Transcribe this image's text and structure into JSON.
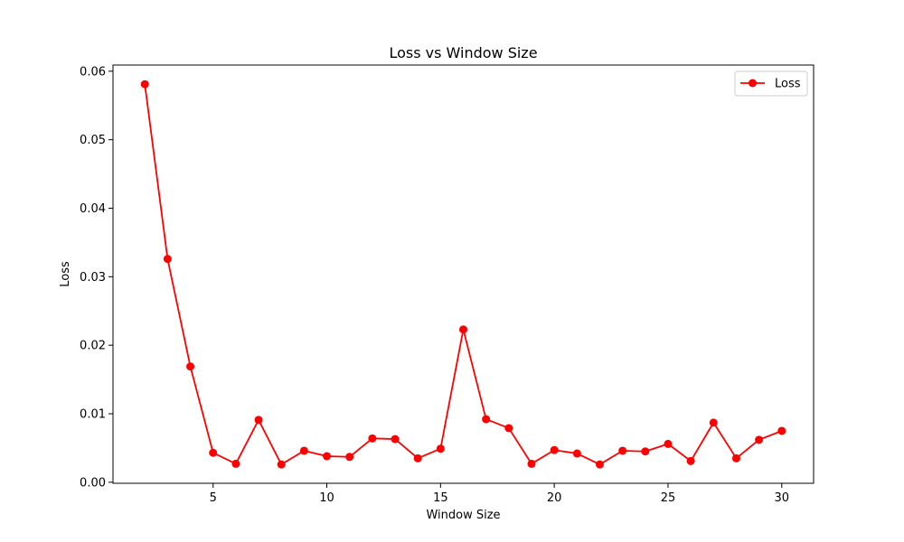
{
  "chart_data": {
    "type": "line",
    "title": "Loss vs Window Size",
    "xlabel": "Window Size",
    "ylabel": "Loss",
    "xlim": [
      0.6,
      31.4
    ],
    "ylim": [
      -0.00015,
      0.0609
    ],
    "xticks": [
      5,
      10,
      15,
      20,
      25,
      30
    ],
    "yticks": [
      0.0,
      0.01,
      0.02,
      0.03,
      0.04,
      0.05,
      0.06
    ],
    "ytick_labels": [
      "0.00",
      "0.01",
      "0.02",
      "0.03",
      "0.04",
      "0.05",
      "0.06"
    ],
    "legend": "upper-right",
    "grid": false,
    "series": [
      {
        "name": "Loss",
        "color": "#ff0000",
        "marker": "circle",
        "x": [
          2,
          3,
          4,
          5,
          6,
          7,
          8,
          9,
          10,
          11,
          12,
          13,
          14,
          15,
          16,
          17,
          18,
          19,
          20,
          21,
          22,
          23,
          24,
          25,
          26,
          27,
          28,
          29,
          30
        ],
        "y": [
          0.0581,
          0.0326,
          0.0169,
          0.0043,
          0.0027,
          0.0091,
          0.0026,
          0.0046,
          0.0038,
          0.0037,
          0.0064,
          0.0063,
          0.0035,
          0.0049,
          0.0223,
          0.0092,
          0.0079,
          0.0027,
          0.0047,
          0.0042,
          0.0026,
          0.0046,
          0.0045,
          0.0056,
          0.0031,
          0.0087,
          0.0035,
          0.0062,
          0.0075
        ]
      }
    ]
  }
}
